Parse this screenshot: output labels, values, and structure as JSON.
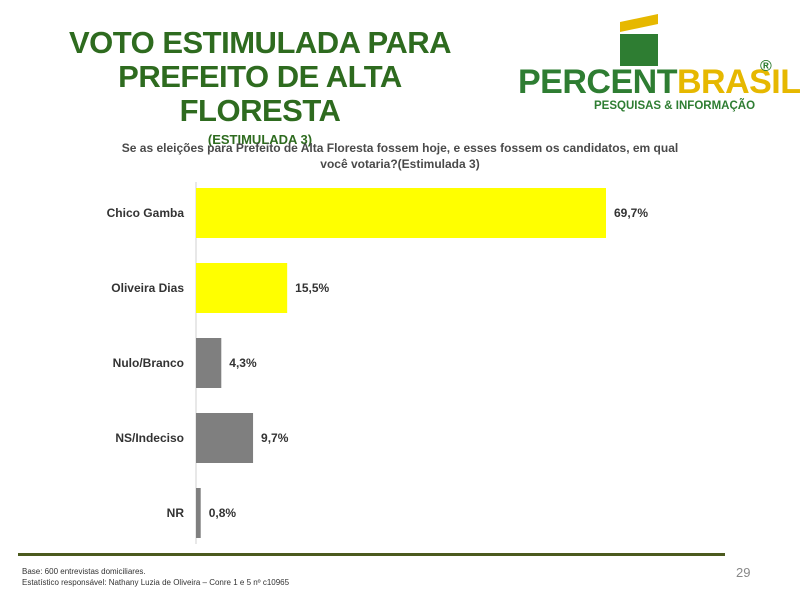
{
  "header": {
    "title_line1": "VOTO ESTIMULADA PARA",
    "title_line2": "PREFEITO DE ALTA FLORESTA",
    "subtitle": "(ESTIMULADA 3)"
  },
  "logo": {
    "name_part1": "PERCENT",
    "name_part2": "BRASIL",
    "registered_mark": "®",
    "tagline": "PESQUISAS & INFORMAÇÃO"
  },
  "question": {
    "line1": "Se as eleições para Prefeito de Alta Floresta fossem hoje, e esses fossem os candidatos, em qual",
    "line2": "você votaria?(Estimulada 3)"
  },
  "chart_data": {
    "type": "bar",
    "orientation": "horizontal",
    "categories": [
      "Chico Gamba",
      "Oliveira Dias",
      "Nulo/Branco",
      "NS/Indeciso",
      "NR"
    ],
    "values": [
      69.7,
      15.5,
      4.3,
      9.7,
      0.8
    ],
    "value_labels": [
      "69,7%",
      "15,5%",
      "4,3%",
      "9,7%",
      "0,8%"
    ],
    "colors": [
      "#ffff00",
      "#ffff00",
      "#7f7f7f",
      "#7f7f7f",
      "#7f7f7f"
    ],
    "xlim": [
      0,
      100
    ],
    "grid": false,
    "legend": "none"
  },
  "footer": {
    "base": "Base: 600 entrevistas domiciliares.",
    "statistician": "Estatístico responsável: Nathany Luzia de Oliveira – Conre 1 e 5 nº c10965",
    "page_number": "29"
  }
}
